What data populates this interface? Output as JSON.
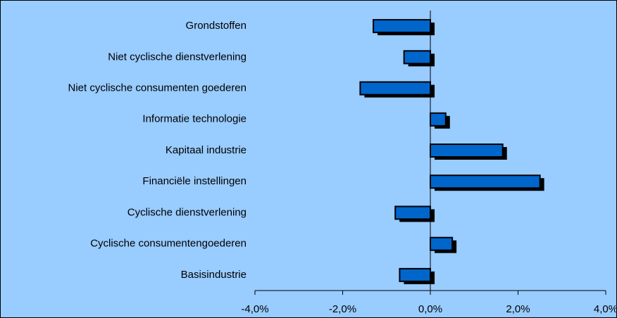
{
  "chart_data": {
    "type": "bar",
    "orientation": "horizontal",
    "categories": [
      "Grondstoffen",
      "Niet cyclische dienstverlening",
      "Niet cyclische consumenten goederen",
      "Informatie technologie",
      "Kapitaal industrie",
      "Financiële instellingen",
      "Cyclische dienstverlening",
      "Cyclische consumentengoederen",
      "Basisindustrie"
    ],
    "values": [
      -1.3,
      -0.6,
      -1.6,
      0.35,
      1.65,
      2.5,
      -0.8,
      0.5,
      -0.7
    ],
    "color": "#0066cc",
    "xlim": [
      -4,
      4
    ],
    "xticks": [
      {
        "value": -4,
        "label": "-4,0%"
      },
      {
        "value": -2,
        "label": "-2,0%"
      },
      {
        "value": 0,
        "label": "0,0%"
      },
      {
        "value": 2,
        "label": "2,0%"
      },
      {
        "value": 4,
        "label": "4,0%"
      }
    ]
  }
}
